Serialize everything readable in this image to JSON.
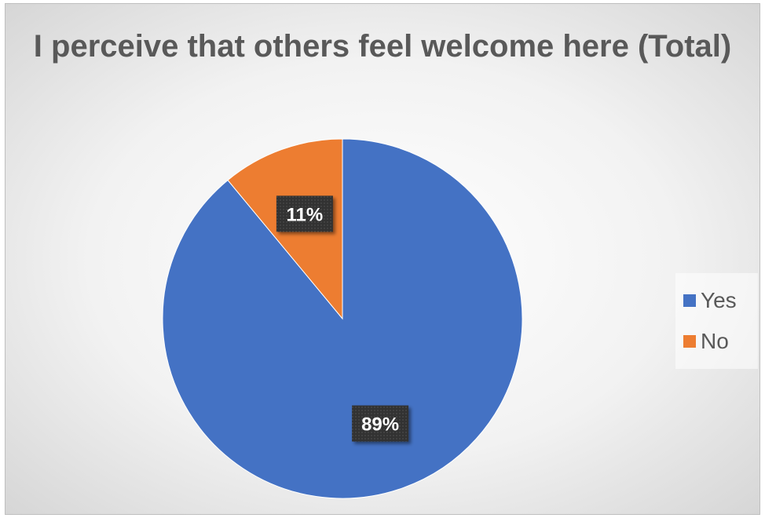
{
  "chart_data": {
    "type": "pie",
    "title": "I perceive that others feel welcome here (Total)",
    "categories": [
      "Yes",
      "No"
    ],
    "values": [
      89,
      11
    ],
    "data_labels": [
      "89%",
      "11%"
    ],
    "colors": [
      "#4472c4",
      "#ed7d31"
    ],
    "legend_position": "right",
    "start_angle_deg": 0,
    "direction": "clockwise"
  }
}
